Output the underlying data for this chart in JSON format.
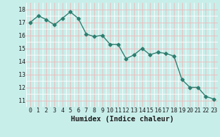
{
  "x": [
    0,
    1,
    2,
    3,
    4,
    5,
    6,
    7,
    8,
    9,
    10,
    11,
    12,
    13,
    14,
    15,
    16,
    17,
    18,
    19,
    20,
    21,
    22,
    23
  ],
  "y": [
    17.0,
    17.5,
    17.2,
    16.8,
    17.3,
    17.8,
    17.3,
    16.1,
    15.9,
    16.0,
    15.3,
    15.3,
    14.2,
    14.5,
    15.0,
    14.5,
    14.7,
    14.6,
    14.4,
    12.6,
    12.0,
    12.0,
    11.3,
    11.1
  ],
  "line_color": "#2e7d6e",
  "marker": "D",
  "markersize": 2.5,
  "linewidth": 1.0,
  "xlabel": "Humidex (Indice chaleur)",
  "xlim": [
    -0.5,
    23.5
  ],
  "ylim": [
    10.5,
    18.5
  ],
  "yticks": [
    11,
    12,
    13,
    14,
    15,
    16,
    17,
    18
  ],
  "xticks": [
    0,
    1,
    2,
    3,
    4,
    5,
    6,
    7,
    8,
    9,
    10,
    11,
    12,
    13,
    14,
    15,
    16,
    17,
    18,
    19,
    20,
    21,
    22,
    23
  ],
  "background_color": "#c8eeea",
  "grid_white_color": "#ffffff",
  "grid_pink_color": "#f0b8b8",
  "tick_fontsize": 6,
  "xlabel_fontsize": 7.5
}
